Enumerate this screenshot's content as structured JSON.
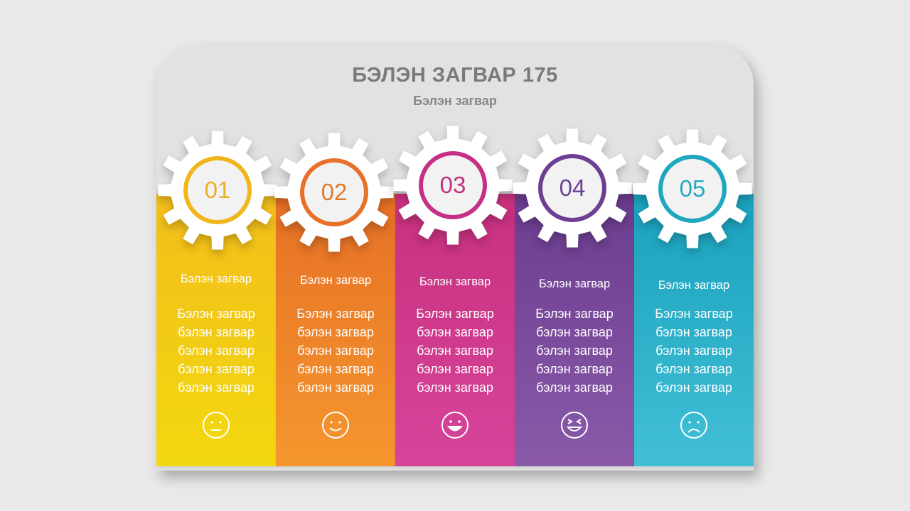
{
  "title": "БЭЛЭН ЗАГВАР 175",
  "subtitle": "Бэлэн загвар",
  "items": [
    {
      "number": "01",
      "heading": "Бэлэн загвар",
      "body": "Бэлэн загвар бэлэн загвар бэлэн загвар бэлэн загвар бэлэн загвар",
      "icon": "neutral-face-icon",
      "color_top": "#f3bd1c",
      "color_bottom": "#f2d80e",
      "ring_color": "#f0b61b",
      "num_color": "#e9b02a"
    },
    {
      "number": "02",
      "heading": "Бэлэн загвар",
      "body": "Бэлэн загвар бэлэн загвар бэлэн загвар бэлэн загвар бэлэн загвар",
      "icon": "smile-face-icon",
      "color_top": "#e66f25",
      "color_bottom": "#f5972e",
      "ring_color": "#e8712a",
      "num_color": "#e37828"
    },
    {
      "number": "03",
      "heading": "Бэлэн загвар",
      "body": "Бэлэн загвар бэлэн загвар бэлэн загвар бэлэн загвар бэлэн загвар",
      "icon": "happy-face-icon",
      "color_top": "#c8307e",
      "color_bottom": "#d6449a",
      "ring_color": "#c62f86",
      "num_color": "#c23382"
    },
    {
      "number": "04",
      "heading": "Бэлэн загвар",
      "body": "Бэлэн загвар бэлэн загвар бэлэн загвар бэлэн загвар бэлэн загвар",
      "icon": "laughing-face-icon",
      "color_top": "#6a3c8f",
      "color_bottom": "#8a5aa9",
      "ring_color": "#6c3f93",
      "num_color": "#6d4193"
    },
    {
      "number": "05",
      "heading": "Бэлэн загвар",
      "body": "Бэлэн загвар бэлэн загвар бэлэн загвар бэлэн загвар бэлэн загвар",
      "icon": "sad-face-icon",
      "color_top": "#1aa1bd",
      "color_bottom": "#41bfd6",
      "ring_color": "#1fa7c0",
      "num_color": "#28a9c3"
    }
  ]
}
